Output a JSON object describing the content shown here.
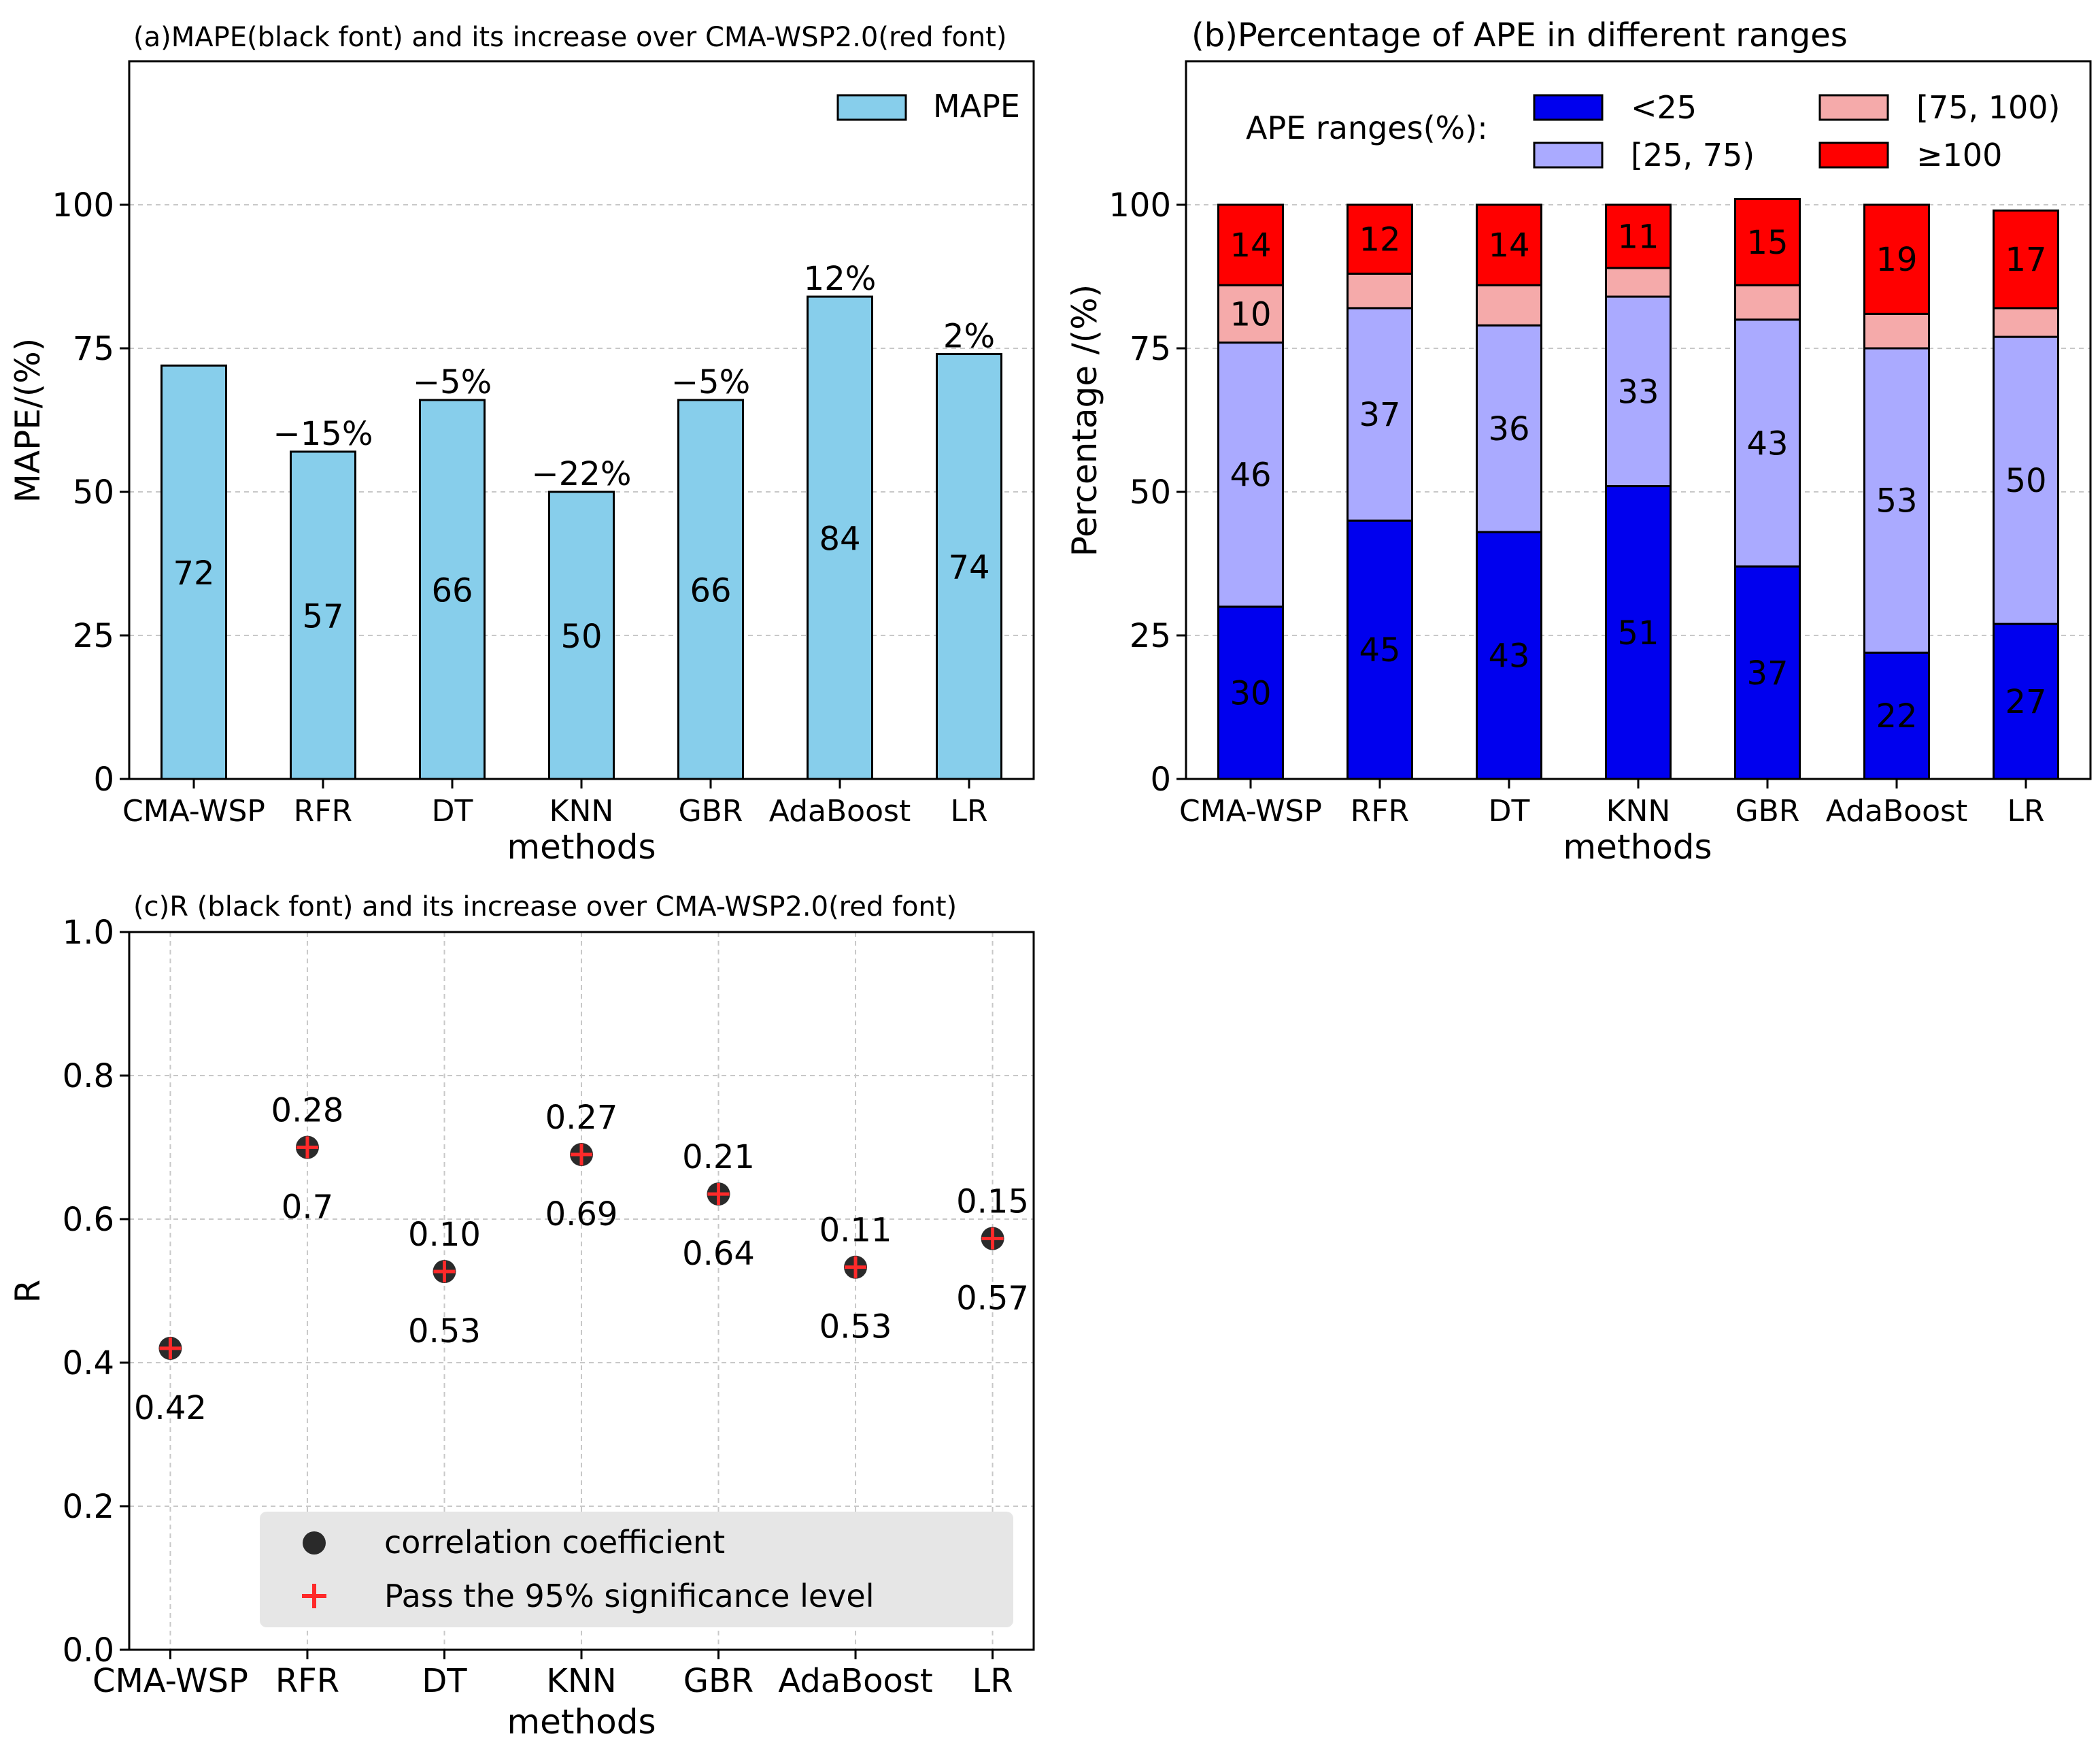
{
  "chart_data": [
    {
      "id": "a",
      "type": "bar",
      "title": "(a)MAPE(black font) and its increase over CMA-WSP2.0(red font)",
      "xlabel": "methods",
      "ylabel": "MAPE/(%)",
      "ylim": [
        0,
        125
      ],
      "yticks": [
        0,
        25,
        50,
        75,
        100
      ],
      "grid": true,
      "legend": {
        "position": "top-right",
        "entries": [
          "MAPE"
        ]
      },
      "categories": [
        "CMA-WSP",
        "RFR",
        "DT",
        "KNN",
        "GBR",
        "AdaBoost",
        "LR"
      ],
      "values": [
        72,
        57,
        66,
        50,
        66,
        84,
        74
      ],
      "value_labels": [
        "72",
        "57",
        "66",
        "50",
        "66",
        "84",
        "74"
      ],
      "increase_labels": [
        "",
        "−15%",
        "−5%",
        "−22%",
        "−5%",
        "12%",
        "2%"
      ],
      "colors": {
        "bar": "#87ceeb",
        "edge": "#000000",
        "value_text": "#000000",
        "increase_text": "#ff0000"
      }
    },
    {
      "id": "b",
      "type": "bar",
      "stacked": true,
      "title": "(b)Percentage of APE in different ranges",
      "xlabel": "methods",
      "ylabel": "Percentage /(%)",
      "ylim": [
        0,
        125
      ],
      "yticks": [
        0,
        25,
        50,
        75,
        100
      ],
      "grid": true,
      "legend": {
        "position": "top",
        "title": "APE ranges(%):"
      },
      "categories": [
        "CMA-WSP",
        "RFR",
        "DT",
        "KNN",
        "GBR",
        "AdaBoost",
        "LR"
      ],
      "series": [
        {
          "name": "<25",
          "color": "#0000ee",
          "values": [
            30,
            45,
            43,
            51,
            37,
            22,
            27
          ],
          "labels": [
            "30",
            "45",
            "43",
            "51",
            "37",
            "22",
            "27"
          ]
        },
        {
          "name": "[25, 75)",
          "color": "#aaaaff",
          "values": [
            46,
            37,
            36,
            33,
            43,
            53,
            50
          ],
          "labels": [
            "46",
            "37",
            "36",
            "33",
            "43",
            "53",
            "50"
          ]
        },
        {
          "name": "[75, 100)",
          "color": "#f5aaaa",
          "values": [
            10,
            6,
            7,
            5,
            6,
            6,
            5
          ],
          "labels": [
            "10",
            "",
            "",
            "",
            "",
            "",
            ""
          ]
        },
        {
          "name": "≥100",
          "color": "#ff0000",
          "values": [
            14,
            12,
            14,
            11,
            15,
            19,
            17
          ],
          "labels": [
            "14",
            "12",
            "14",
            "11",
            "15",
            "19",
            "17"
          ]
        }
      ],
      "label_color": "#ffff00"
    },
    {
      "id": "c",
      "type": "scatter",
      "title": "(c)R (black font) and its increase over CMA-WSP2.0(red font)",
      "xlabel": "methods",
      "ylabel": "R",
      "ylim": [
        0,
        1
      ],
      "yticks": [
        "0.0",
        "0.2",
        "0.4",
        "0.6",
        "0.8",
        "1.0"
      ],
      "grid": true,
      "categories": [
        "CMA-WSP",
        "RFR",
        "DT",
        "KNN",
        "GBR",
        "AdaBoost",
        "LR"
      ],
      "values": [
        0.42,
        0.7,
        0.527,
        0.69,
        0.635,
        0.533,
        0.573
      ],
      "value_labels": [
        "0.42",
        "0.7",
        "0.53",
        "0.69",
        "0.64",
        "0.53",
        "0.57"
      ],
      "increase_labels": [
        "",
        "0.28",
        "0.10",
        "0.27",
        "0.21",
        "0.11",
        "0.15"
      ],
      "legend": {
        "position": "bottom-right",
        "entries": [
          "correlation coefficient",
          "Pass the 95% significance level"
        ]
      },
      "colors": {
        "marker": "#2a2a2a",
        "cross": "#ff2a2a",
        "increase_text": "#ff0000",
        "legend_bg": "#e6e6e6"
      }
    }
  ]
}
